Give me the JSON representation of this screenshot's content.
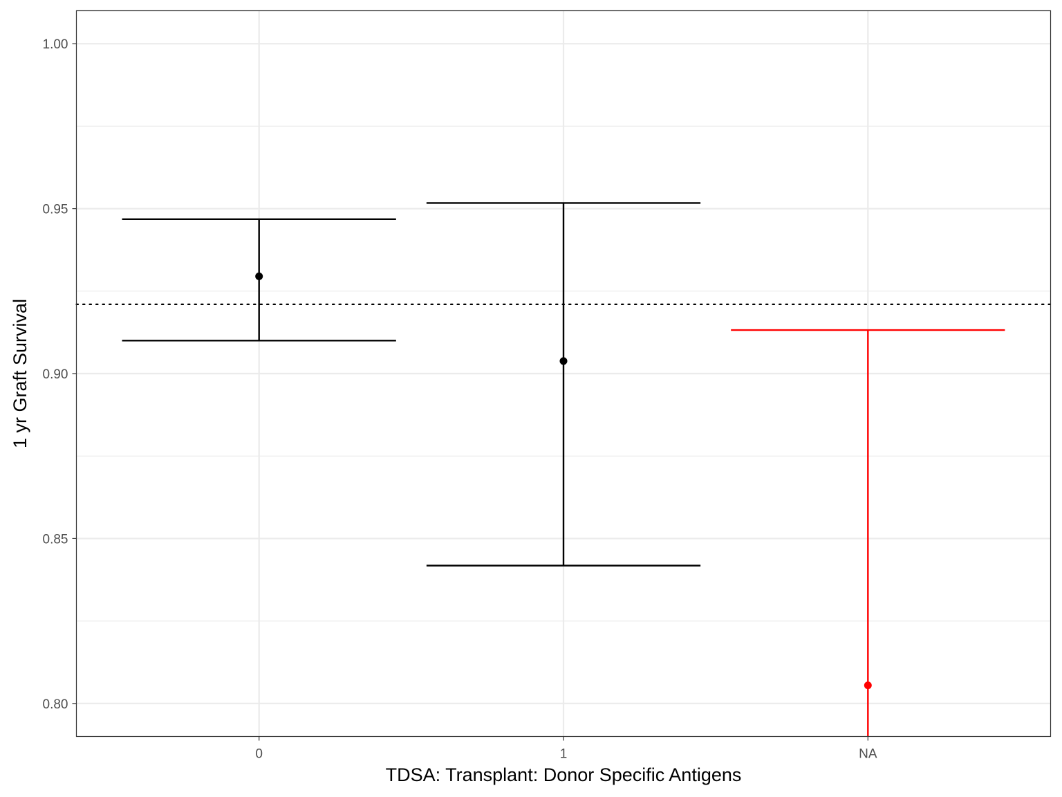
{
  "chart_data": {
    "type": "errorbar",
    "title": "",
    "xlabel": "TDSA: Transplant: Donor Specific Antigens",
    "ylabel": "1 yr Graft Survival",
    "categories": [
      "0",
      "1",
      "NA"
    ],
    "ylim": [
      0.79,
      1.01
    ],
    "y_ticks": [
      "1.00",
      "0.95",
      "0.90",
      "0.85",
      "0.80"
    ],
    "y_tick_values": [
      1.0,
      0.95,
      0.9,
      0.85,
      0.8
    ],
    "reference_line": {
      "value": 0.921,
      "style": "dotted",
      "color": "#000000"
    },
    "points": [
      {
        "category": "0",
        "estimate": 0.9295,
        "lower": 0.91,
        "upper": 0.9468,
        "color": "#000000"
      },
      {
        "category": "1",
        "estimate": 0.9038,
        "lower": 0.8418,
        "upper": 0.9517,
        "color": "#000000"
      },
      {
        "category": "NA",
        "estimate": 0.8055,
        "lower": 0.79,
        "upper": 0.9132,
        "color": "#ff0000"
      }
    ],
    "grid": true,
    "legend": "none"
  }
}
